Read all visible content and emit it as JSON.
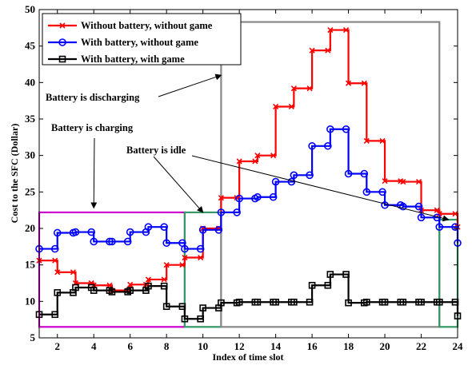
{
  "chart_data": {
    "type": "line",
    "step": true,
    "xlabel": "Index of time slot",
    "ylabel": "Cost to the SFC (Dollar)",
    "xlim": [
      1,
      24
    ],
    "ylim": [
      5,
      50
    ],
    "xticks": [
      2,
      4,
      6,
      8,
      10,
      12,
      14,
      16,
      18,
      20,
      22,
      24
    ],
    "yticks": [
      5,
      10,
      15,
      20,
      25,
      30,
      35,
      40,
      45,
      50
    ],
    "grid": false,
    "legend_position": "top-left",
    "x": [
      1,
      2,
      3,
      4,
      5,
      6,
      7,
      8,
      9,
      10,
      11,
      12,
      13,
      14,
      15,
      16,
      17,
      18,
      19,
      20,
      21,
      22,
      23,
      24
    ],
    "series": [
      {
        "name": "Without battery, without game",
        "color": "#ff0000",
        "marker": "x",
        "values": [
          15.6,
          14.0,
          12.5,
          12.2,
          11.5,
          12.3,
          13.0,
          15.0,
          16.0,
          20.0,
          24.2,
          29.2,
          30.0,
          36.7,
          39.2,
          44.4,
          47.2,
          39.9,
          32.0,
          26.5,
          26.4,
          22.5,
          22.0,
          20.2
        ]
      },
      {
        "name": "With battery, without game",
        "color": "#0000ff",
        "marker": "o",
        "values": [
          17.2,
          19.4,
          19.5,
          18.2,
          18.2,
          19.5,
          20.2,
          18.0,
          17.2,
          19.8,
          22.2,
          24.1,
          24.3,
          26.4,
          27.3,
          31.3,
          33.6,
          27.5,
          25.0,
          23.2,
          23.0,
          21.5,
          20.2,
          18.0
        ]
      },
      {
        "name": "With battery, with game",
        "color": "#000000",
        "marker": "s",
        "values": [
          8.2,
          11.2,
          11.9,
          11.5,
          11.3,
          11.5,
          12.1,
          9.3,
          7.6,
          9.1,
          9.8,
          9.9,
          9.9,
          9.9,
          9.9,
          12.2,
          13.7,
          9.8,
          9.9,
          9.9,
          9.9,
          9.9,
          9.9,
          8.0
        ]
      }
    ],
    "regions": [
      {
        "name": "charging",
        "color": "#cc00cc",
        "x": [
          1,
          9
        ],
        "y": [
          6.5,
          22.2
        ]
      },
      {
        "name": "idle-left",
        "color": "#339966",
        "x": [
          9,
          11
        ],
        "y": [
          6.5,
          22.2
        ]
      },
      {
        "name": "discharging",
        "color": "#888888",
        "x": [
          11,
          23
        ],
        "y": [
          6.5,
          48.3
        ]
      },
      {
        "name": "idle-right",
        "color": "#339966",
        "x": [
          23,
          24
        ],
        "y": [
          6.5,
          21.2
        ]
      }
    ],
    "annotations": [
      {
        "text": "Battery is discharging",
        "arrow_to": [
          11,
          41
        ]
      },
      {
        "text": "Battery is charging",
        "arrow_to": [
          4,
          22.8
        ]
      },
      {
        "text": "Battery is idle",
        "arrow_to": [
          10,
          22.2
        ],
        "arrow_to_2": [
          23.5,
          21.2
        ]
      }
    ]
  }
}
